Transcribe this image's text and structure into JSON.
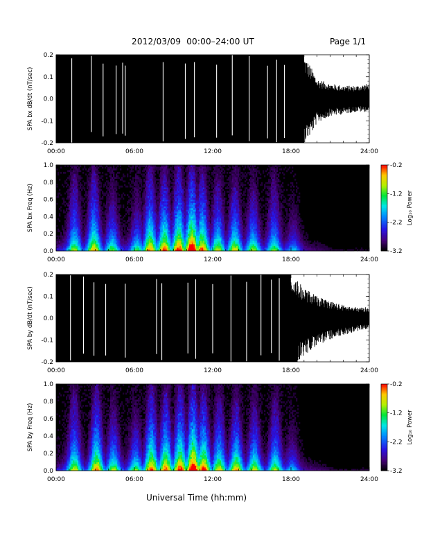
{
  "header": {
    "title": "2012/03/09  00:00–24:00 UT",
    "page": "Page 1/1"
  },
  "x_axis": {
    "title": "Universal Time (hh:mm)",
    "ticks": [
      "00:00",
      "06:00",
      "12:00",
      "18:00",
      "24:00"
    ]
  },
  "colorbar": {
    "label": "Log₁₀ Power",
    "ticks": [
      "-0.2",
      "-1.2",
      "-2.2",
      "-3.2"
    ],
    "range": [
      -3.2,
      -0.2
    ]
  },
  "colors": {
    "wave": "#000000",
    "spectrogram_background": "#000000"
  },
  "chart_data": [
    {
      "type": "line",
      "description_id": "bx-dbdt",
      "ylabel": "SPA bx dB/dt (nT/sec)",
      "xlim": [
        0,
        24
      ],
      "ylim": [
        -0.2,
        0.2
      ],
      "yticks": [
        "0.2",
        "0.1",
        "0.0",
        "-0.1",
        "-0.2"
      ],
      "envelope": {
        "x": [
          0,
          18,
          18.5,
          19,
          19.5,
          20,
          21,
          22,
          23,
          24
        ],
        "upper": [
          0.2,
          0.2,
          0.2,
          0.2,
          0.15,
          0.09,
          0.07,
          0.06,
          0.06,
          0.07
        ],
        "lower": [
          -0.2,
          -0.2,
          -0.2,
          -0.2,
          -0.17,
          -0.11,
          -0.08,
          -0.07,
          -0.06,
          -0.06
        ]
      },
      "gaps": [
        1.2,
        2.7,
        3.6,
        4.6,
        5.1,
        5.3,
        8.2,
        9.9,
        10.6,
        12.3,
        13.5,
        14.8,
        16.2,
        16.9,
        17.5
      ]
    },
    {
      "type": "heatmap",
      "description_id": "bx-freq",
      "ylabel": "SPA bx Freq (Hz)",
      "xlim": [
        0,
        24
      ],
      "ylim": [
        0,
        1.0
      ],
      "yticks": [
        "1.0",
        "0.8",
        "0.6",
        "0.4",
        "0.2",
        "0.0"
      ],
      "zlim": [
        -3.2,
        -0.2
      ],
      "bursts": [
        {
          "t": 1.4,
          "strength": 0.55,
          "height": 0.9
        },
        {
          "t": 2.9,
          "strength": 0.7,
          "height": 0.95
        },
        {
          "t": 4.3,
          "strength": 0.5,
          "height": 0.6
        },
        {
          "t": 6.2,
          "strength": 0.45,
          "height": 0.5
        },
        {
          "t": 7.2,
          "strength": 0.75,
          "height": 1.0
        },
        {
          "t": 8.3,
          "strength": 0.8,
          "height": 0.9
        },
        {
          "t": 9.4,
          "strength": 0.85,
          "height": 1.0
        },
        {
          "t": 10.4,
          "strength": 1.0,
          "height": 1.0
        },
        {
          "t": 11.2,
          "strength": 0.8,
          "height": 0.9
        },
        {
          "t": 12.4,
          "strength": 0.6,
          "height": 0.8
        },
        {
          "t": 13.7,
          "strength": 0.65,
          "height": 0.75
        },
        {
          "t": 15.1,
          "strength": 0.55,
          "height": 0.7
        },
        {
          "t": 16.7,
          "strength": 0.5,
          "height": 0.85
        },
        {
          "t": 18.2,
          "strength": 0.3,
          "height": 0.35
        }
      ]
    },
    {
      "type": "line",
      "description_id": "by-dbdt",
      "ylabel": "SPA by dB/dt (nT/sec)",
      "xlim": [
        0,
        24
      ],
      "ylim": [
        -0.2,
        0.2
      ],
      "yticks": [
        "0.2",
        "0.1",
        "0.0",
        "-0.1",
        "-0.2"
      ],
      "envelope": {
        "x": [
          0,
          17,
          18,
          18.5,
          19,
          20,
          21,
          22,
          23,
          24
        ],
        "upper": [
          0.2,
          0.2,
          0.2,
          0.17,
          0.14,
          0.1,
          0.08,
          0.06,
          0.05,
          0.05
        ],
        "lower": [
          -0.2,
          -0.2,
          -0.2,
          -0.2,
          -0.17,
          -0.13,
          -0.1,
          -0.08,
          -0.06,
          -0.05
        ]
      },
      "gaps": [
        1.1,
        2.1,
        2.9,
        3.8,
        5.3,
        7.7,
        8.1,
        10.1,
        10.7,
        12.0,
        13.4,
        14.6,
        15.7,
        16.5,
        17.1
      ]
    },
    {
      "type": "heatmap",
      "description_id": "by-freq",
      "ylabel": "SPA by Freq (Hz)",
      "xlim": [
        0,
        24
      ],
      "ylim": [
        0,
        1.0
      ],
      "yticks": [
        "1.0",
        "0.8",
        "0.6",
        "0.4",
        "0.2",
        "0.0"
      ],
      "zlim": [
        -3.2,
        -0.2
      ],
      "bursts": [
        {
          "t": 1.4,
          "strength": 0.6,
          "height": 0.95
        },
        {
          "t": 3.1,
          "strength": 0.75,
          "height": 1.0
        },
        {
          "t": 4.4,
          "strength": 0.55,
          "height": 0.7
        },
        {
          "t": 6.1,
          "strength": 0.5,
          "height": 0.55
        },
        {
          "t": 7.3,
          "strength": 0.8,
          "height": 1.0
        },
        {
          "t": 8.4,
          "strength": 0.8,
          "height": 0.9
        },
        {
          "t": 9.5,
          "strength": 0.85,
          "height": 1.0
        },
        {
          "t": 10.5,
          "strength": 1.0,
          "height": 1.0
        },
        {
          "t": 11.3,
          "strength": 0.85,
          "height": 0.9
        },
        {
          "t": 12.5,
          "strength": 0.65,
          "height": 0.85
        },
        {
          "t": 13.8,
          "strength": 0.7,
          "height": 0.8
        },
        {
          "t": 15.2,
          "strength": 0.6,
          "height": 0.75
        },
        {
          "t": 16.8,
          "strength": 0.55,
          "height": 0.85
        },
        {
          "t": 18.1,
          "strength": 0.3,
          "height": 0.35
        }
      ]
    }
  ]
}
